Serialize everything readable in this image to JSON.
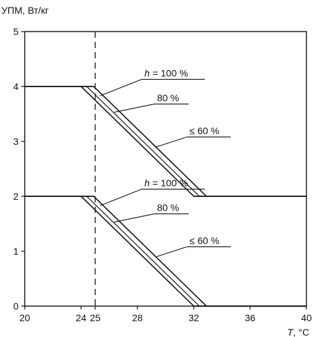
{
  "chart_data": {
    "type": "line",
    "title": "",
    "ylabel": "УПМ, Вт/кг",
    "xlabel_var": "T",
    "xlabel_unit": ", °C",
    "xlim": [
      20,
      40
    ],
    "ylim": [
      0,
      5
    ],
    "x_ticks": [
      20,
      24,
      25,
      28,
      32,
      36,
      40
    ],
    "y_ticks": [
      0,
      1,
      2,
      3,
      4,
      5
    ],
    "grid": false,
    "reference_line": {
      "x": 25,
      "style": "dashed"
    },
    "groups": [
      {
        "level": 4,
        "series": [
          {
            "name": "h = 100 %",
            "points": [
              [
                20,
                4
              ],
              [
                24,
                4
              ],
              [
                32,
                2
              ],
              [
                40,
                2
              ]
            ]
          },
          {
            "name": "80 %",
            "points": [
              [
                20,
                4
              ],
              [
                24.4,
                4
              ],
              [
                32.4,
                2
              ],
              [
                40,
                2
              ]
            ]
          },
          {
            "name": "≤ 60 %",
            "points": [
              [
                20,
                4
              ],
              [
                24.9,
                4
              ],
              [
                32.9,
                2
              ],
              [
                40,
                2
              ]
            ]
          }
        ]
      },
      {
        "level": 2,
        "series": [
          {
            "name": "h = 100 %",
            "points": [
              [
                20,
                2
              ],
              [
                24,
                2
              ],
              [
                32,
                0
              ],
              [
                40,
                0
              ]
            ]
          },
          {
            "name": "80 %",
            "points": [
              [
                20,
                2
              ],
              [
                24.4,
                2
              ],
              [
                32.4,
                0
              ],
              [
                40,
                0
              ]
            ]
          },
          {
            "name": "≤ 60 %",
            "points": [
              [
                20,
                2
              ],
              [
                24.9,
                2
              ],
              [
                32.9,
                0
              ],
              [
                40,
                0
              ]
            ]
          }
        ]
      }
    ],
    "annotations": [
      {
        "prefix": "h",
        "text": " = 100 %",
        "target": [
          25.35,
          3.83
        ],
        "label_at": [
          28.3,
          4.13
        ]
      },
      {
        "prefix": "",
        "text": "80 %",
        "target": [
          26.35,
          3.53
        ],
        "label_at": [
          29.2,
          3.68
        ]
      },
      {
        "prefix": "",
        "text": "≤ 60 %",
        "target": [
          29.35,
          2.9
        ],
        "label_at": [
          31.5,
          3.08
        ]
      },
      {
        "prefix": "h",
        "text": " = 100 %",
        "target": [
          25.35,
          1.83
        ],
        "label_at": [
          28.3,
          2.13
        ]
      },
      {
        "prefix": "",
        "text": "80 %",
        "target": [
          26.35,
          1.53
        ],
        "label_at": [
          29.2,
          1.68
        ]
      },
      {
        "prefix": "",
        "text": "≤ 60 %",
        "target": [
          29.35,
          0.9
        ],
        "label_at": [
          31.5,
          1.08
        ]
      }
    ]
  }
}
